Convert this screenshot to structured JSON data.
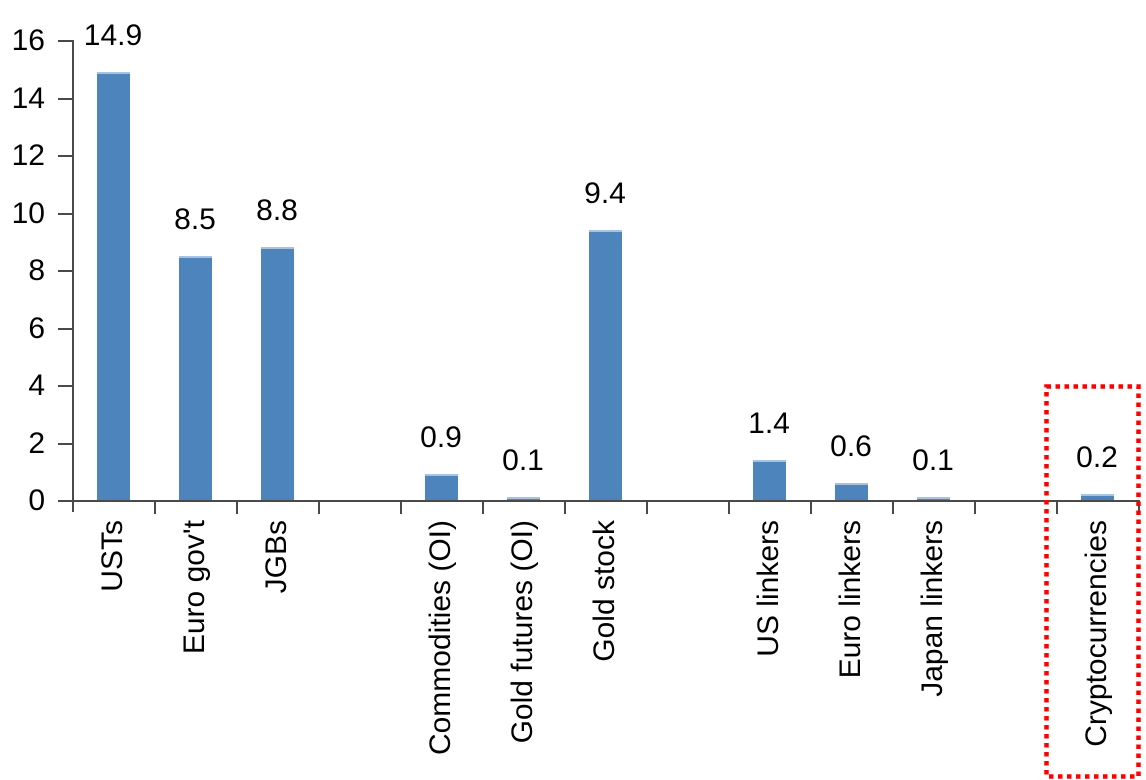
{
  "chart_data": {
    "type": "bar",
    "title": "",
    "categories": [
      "USTs",
      "Euro gov't",
      "JGBs",
      "Commodities (OI)",
      "Gold futures (OI)",
      "Gold stock",
      "US linkers",
      "Euro linkers",
      "Japan linkers",
      "Cryptocurrencies"
    ],
    "values": [
      14.9,
      8.5,
      8.8,
      0.9,
      0.1,
      9.4,
      1.4,
      0.6,
      0.1,
      0.2
    ],
    "value_labels": [
      "14.9",
      "8.5",
      "8.8",
      "0.9",
      "0.1",
      "9.4",
      "1.4",
      "0.6",
      "0.1",
      "0.2"
    ],
    "slots": [
      0,
      1,
      2,
      4,
      5,
      6,
      8,
      9,
      10,
      12
    ],
    "total_slots": 13,
    "xlabel": "",
    "ylabel": "",
    "ylim": [
      0,
      16
    ],
    "ytick_labels": [
      "0",
      "2",
      "4",
      "6",
      "8",
      "10",
      "12",
      "14",
      "16"
    ],
    "grid": false,
    "legend": false,
    "bar_color": "#4E84BC",
    "bar_top_highlight": "#A9C3DF",
    "axis_color": "#4A4A4A",
    "text_color": "#000000",
    "highlight_box": {
      "around_category": "Cryptocurrencies",
      "color": "#FF0000",
      "style": "dotted"
    }
  }
}
